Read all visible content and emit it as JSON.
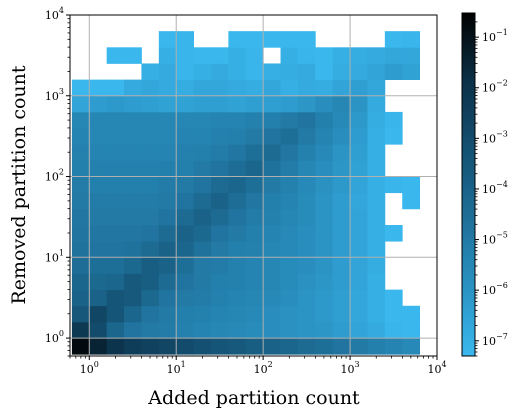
{
  "chart_data": {
    "type": "heatmap",
    "xlabel": "Added partition count",
    "ylabel": "Removed partition count",
    "x_scale": "log",
    "y_scale": "log",
    "xlim": [
      0.6,
      10000
    ],
    "ylim": [
      0.6,
      10000
    ],
    "bins_per_decade": 5,
    "x_ticks": [
      {
        "value": 1,
        "base": "10",
        "exp": "0"
      },
      {
        "value": 10,
        "base": "10",
        "exp": "1"
      },
      {
        "value": 100,
        "base": "10",
        "exp": "2"
      },
      {
        "value": 1000,
        "base": "10",
        "exp": "3"
      },
      {
        "value": 10000,
        "base": "10",
        "exp": "4"
      }
    ],
    "y_ticks": [
      {
        "value": 1,
        "base": "10",
        "exp": "0"
      },
      {
        "value": 10,
        "base": "10",
        "exp": "1"
      },
      {
        "value": 100,
        "base": "10",
        "exp": "2"
      },
      {
        "value": 1000,
        "base": "10",
        "exp": "3"
      },
      {
        "value": 10000,
        "base": "10",
        "exp": "4"
      }
    ],
    "colorbar": {
      "scale": "log",
      "range": [
        5e-08,
        0.3
      ],
      "ticks": [
        {
          "value": 0.1,
          "base": "10",
          "exp": "−1"
        },
        {
          "value": 0.01,
          "base": "10",
          "exp": "−2"
        },
        {
          "value": 0.001,
          "base": "10",
          "exp": "−3"
        },
        {
          "value": 0.0001,
          "base": "10",
          "exp": "−4"
        },
        {
          "value": 1e-05,
          "base": "10",
          "exp": "−5"
        },
        {
          "value": 1e-06,
          "base": "10",
          "exp": "−6"
        },
        {
          "value": 1e-07,
          "base": "10",
          "exp": "−7"
        }
      ]
    },
    "colormap": [
      "#3ab8ee",
      "#2a92c2",
      "#1e6f98",
      "#145173",
      "#0b3148",
      "#000000"
    ],
    "grid": true,
    "cell_density_log10": {
      "description": "log10 density per bin; rows = removed (bottom to top), columns = added (left to right)",
      "rows": [
        [
          -0.8,
          -1.5,
          -2.0,
          -2.4,
          -2.6,
          -2.8,
          -3.0,
          -3.2,
          -3.4,
          -3.6,
          -3.8,
          -4.0,
          -4.2,
          -4.4,
          -4.6,
          -4.8,
          -5.0,
          -5.2,
          -5.4,
          -5.6
        ],
        [
          -2.2,
          -3.0,
          -4.2,
          -4.8,
          -5.0,
          -5.1,
          -5.3,
          -5.4,
          -5.5,
          -5.6,
          -5.7,
          -5.8,
          -5.9,
          -6.0,
          -6.1,
          -6.3,
          -6.6,
          -6.8,
          -7.2,
          -7.4
        ],
        [
          -3.5,
          -2.8,
          -3.4,
          -4.2,
          -4.8,
          -5.0,
          -5.2,
          -5.3,
          -5.4,
          -5.5,
          -5.6,
          -5.8,
          -5.9,
          -6.0,
          -6.2,
          -6.4,
          -6.7,
          -7.0,
          -7.3,
          -7.4
        ],
        [
          -4.0,
          -4.0,
          -3.4,
          -3.6,
          -4.3,
          -4.8,
          -5.0,
          -5.1,
          -5.3,
          -5.4,
          -5.5,
          -5.6,
          -5.8,
          -6.0,
          -6.2,
          -6.4,
          -6.7,
          -7.0,
          -7.4,
          null
        ],
        [
          -4.2,
          -4.3,
          -4.2,
          -3.6,
          -3.8,
          -4.4,
          -4.8,
          -5.0,
          -5.2,
          -5.3,
          -5.4,
          -5.5,
          -5.7,
          -5.9,
          -6.1,
          -6.3,
          -6.6,
          -7.0,
          null,
          null
        ],
        [
          -4.5,
          -4.6,
          -4.6,
          -4.3,
          -3.8,
          -4.0,
          -4.6,
          -5.0,
          -5.1,
          -5.3,
          -5.4,
          -5.5,
          -5.7,
          -5.8,
          -6.0,
          -6.3,
          -6.6,
          -6.9,
          null,
          null
        ],
        [
          -4.7,
          -4.8,
          -4.8,
          -4.7,
          -4.4,
          -4.0,
          -4.2,
          -4.7,
          -5.0,
          -5.2,
          -5.3,
          -5.5,
          -5.6,
          -5.8,
          -6.0,
          -6.3,
          -6.6,
          -7.0,
          null,
          null
        ],
        [
          -4.8,
          -4.9,
          -4.9,
          -4.9,
          -4.8,
          -4.4,
          -4.0,
          -4.3,
          -4.8,
          -5.0,
          -5.2,
          -5.4,
          -5.6,
          -5.8,
          -6.0,
          -6.3,
          -6.6,
          -7.0,
          -7.4,
          null
        ],
        [
          -4.9,
          -5.0,
          -5.0,
          -5.0,
          -5.0,
          -4.8,
          -4.4,
          -4.0,
          -4.4,
          -4.8,
          -5.1,
          -5.3,
          -5.5,
          -5.7,
          -6.0,
          -6.3,
          -6.6,
          -7.0,
          null,
          null
        ],
        [
          -5.0,
          -5.1,
          -5.1,
          -5.1,
          -5.1,
          -5.0,
          -4.8,
          -4.4,
          -4.0,
          -4.5,
          -4.9,
          -5.2,
          -5.4,
          -5.7,
          -6.0,
          -6.3,
          -6.7,
          -7.0,
          null,
          -7.4
        ],
        [
          -5.1,
          -5.2,
          -5.2,
          -5.2,
          -5.2,
          -5.1,
          -5.0,
          -4.8,
          -4.4,
          -4.2,
          -4.6,
          -5.0,
          -5.3,
          -5.6,
          -5.9,
          -6.2,
          -6.6,
          -7.0,
          -7.2,
          -7.3
        ],
        [
          -5.2,
          -5.3,
          -5.3,
          -5.3,
          -5.3,
          -5.2,
          -5.2,
          -5.0,
          -4.8,
          -4.5,
          -4.2,
          -4.7,
          -5.1,
          -5.5,
          -5.8,
          -6.1,
          -6.5,
          -7.0,
          null,
          null
        ],
        [
          -5.3,
          -5.4,
          -5.4,
          -5.4,
          -5.4,
          -5.4,
          -5.3,
          -5.2,
          -5.1,
          -4.9,
          -4.6,
          -4.4,
          -4.9,
          -5.3,
          -5.6,
          -6.0,
          -6.4,
          -7.0,
          null,
          null
        ],
        [
          -5.4,
          -5.5,
          -5.5,
          -5.5,
          -5.5,
          -5.5,
          -5.4,
          -5.4,
          -5.3,
          -5.2,
          -5.0,
          -4.8,
          -4.6,
          -5.0,
          -5.4,
          -5.8,
          -6.3,
          -7.0,
          -7.3,
          null
        ],
        [
          -5.5,
          -5.5,
          -5.5,
          -5.5,
          -5.5,
          -5.5,
          -5.5,
          -5.5,
          -5.4,
          -5.4,
          -5.3,
          -5.2,
          -5.0,
          -4.8,
          -5.2,
          -5.6,
          -6.2,
          -6.9,
          -7.2,
          null
        ],
        [
          -6.6,
          -6.3,
          -6.2,
          -6.3,
          -6.4,
          -6.5,
          -6.5,
          -6.4,
          -6.4,
          -6.5,
          -6.4,
          -6.4,
          -6.3,
          -6.1,
          -5.8,
          -5.5,
          -6.0,
          -6.8,
          null,
          null
        ],
        [
          -7.5,
          -7.3,
          -7.3,
          -6.8,
          -6.7,
          -6.8,
          -6.9,
          -6.7,
          -6.7,
          -6.8,
          -6.9,
          -6.7,
          -7.0,
          -6.8,
          -6.9,
          -6.6,
          -6.4,
          -6.7,
          null,
          null
        ],
        [
          null,
          null,
          null,
          null,
          -7.0,
          -6.8,
          -7.2,
          -7.0,
          -6.8,
          -7.0,
          -7.2,
          -7.0,
          -6.9,
          -6.8,
          -7.4,
          -6.9,
          -6.8,
          -6.6,
          -6.3,
          -6.5
        ],
        [
          null,
          null,
          -7.3,
          -7.3,
          null,
          -7.0,
          -7.2,
          -7.3,
          -7.3,
          -7.0,
          -7.2,
          null,
          -7.0,
          -7.2,
          -7.3,
          -7.0,
          -6.9,
          -6.8,
          -6.7,
          -6.7
        ],
        [
          null,
          null,
          null,
          null,
          null,
          -7.4,
          -7.2,
          null,
          null,
          -7.4,
          -7.4,
          -7.4,
          -7.4,
          -7.3,
          null,
          null,
          null,
          null,
          -7.3,
          -7.2
        ]
      ]
    }
  }
}
